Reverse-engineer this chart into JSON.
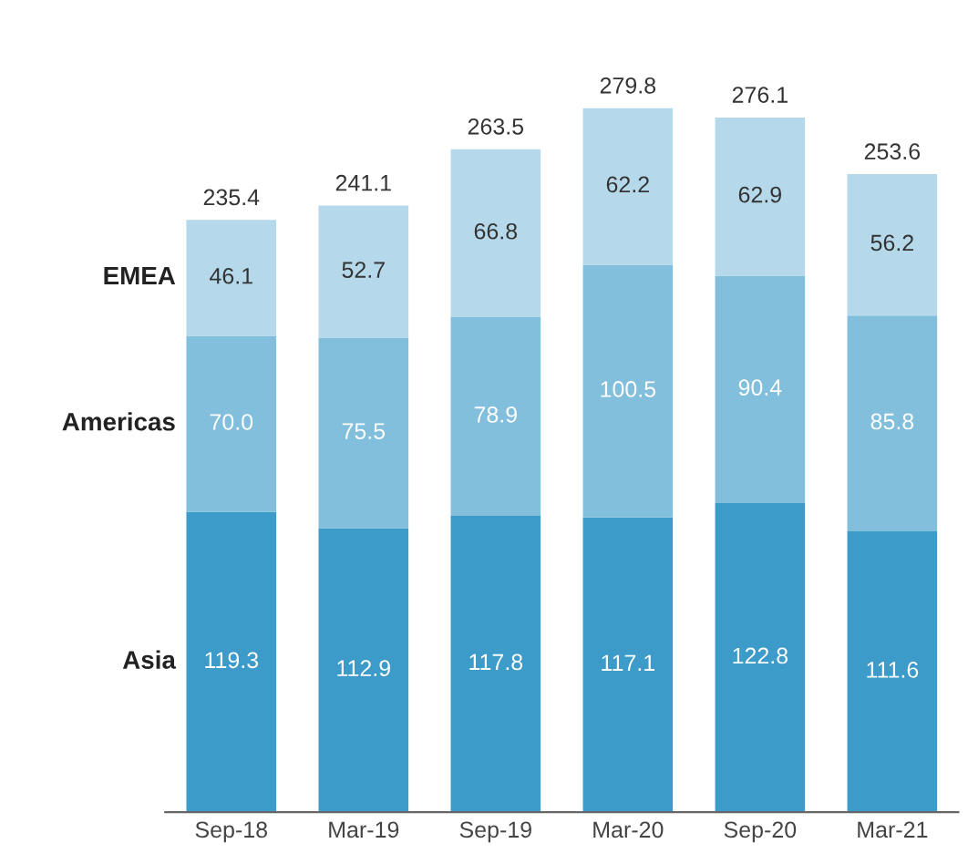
{
  "chart_data": {
    "type": "bar",
    "stacked": true,
    "legend": "left",
    "categories": [
      "Sep-18",
      "Mar-19",
      "Sep-19",
      "Mar-20",
      "Sep-20",
      "Mar-21"
    ],
    "series": [
      {
        "name": "Asia",
        "color": "#3d9bc9",
        "values": [
          119.3,
          112.9,
          117.8,
          117.1,
          122.8,
          111.6
        ],
        "value_labels": [
          "119.3",
          "112.9",
          "117.8",
          "117.1",
          "122.8",
          "111.6"
        ]
      },
      {
        "name": "Americas",
        "color": "#82bfdc",
        "values": [
          70.0,
          75.5,
          78.9,
          100.5,
          90.4,
          85.8
        ],
        "value_labels": [
          "70.0",
          "75.5",
          "78.9",
          "100.5",
          "90.4",
          "85.8"
        ]
      },
      {
        "name": "EMEA",
        "color": "#b5d8ea",
        "values": [
          46.1,
          52.7,
          66.8,
          62.2,
          62.9,
          56.2
        ],
        "value_labels": [
          "46.1",
          "52.7",
          "66.8",
          "62.2",
          "62.9",
          "56.2"
        ]
      }
    ],
    "totals": [
      "235.4",
      "241.1",
      "263.5",
      "279.8",
      "276.1",
      "253.6"
    ]
  }
}
